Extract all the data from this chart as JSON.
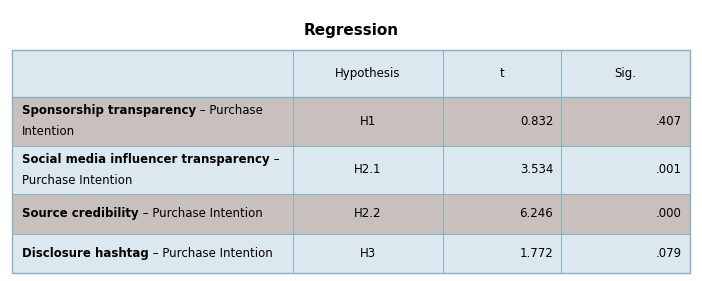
{
  "title": "Regression",
  "col_headers": [
    "Hypothesis",
    "t",
    "Sig."
  ],
  "rows": [
    {
      "label_bold": "Sponsorship transparency",
      "label_normal": " – Purchase\nIntention",
      "hypothesis": "H1",
      "t": "0.832",
      "sig": ".407",
      "shaded": true
    },
    {
      "label_bold": "Social media influencer transparency",
      "label_normal": " –\nPurchase Intention",
      "hypothesis": "H2.1",
      "t": "3.534",
      "sig": ".001",
      "shaded": false
    },
    {
      "label_bold": "Source credibility",
      "label_normal": " – Purchase Intention",
      "hypothesis": "H2.2",
      "t": "6.246",
      "sig": ".000",
      "shaded": true
    },
    {
      "label_bold": "Disclosure hashtag",
      "label_normal": " – Purchase Intention",
      "hypothesis": "H3",
      "t": "1.772",
      "sig": ".079",
      "shaded": false
    }
  ],
  "bg_color": "#dce8f0",
  "shaded_color": "#c8c0bc",
  "title_fontsize": 11,
  "header_fontsize": 8.5,
  "cell_fontsize": 8.5
}
